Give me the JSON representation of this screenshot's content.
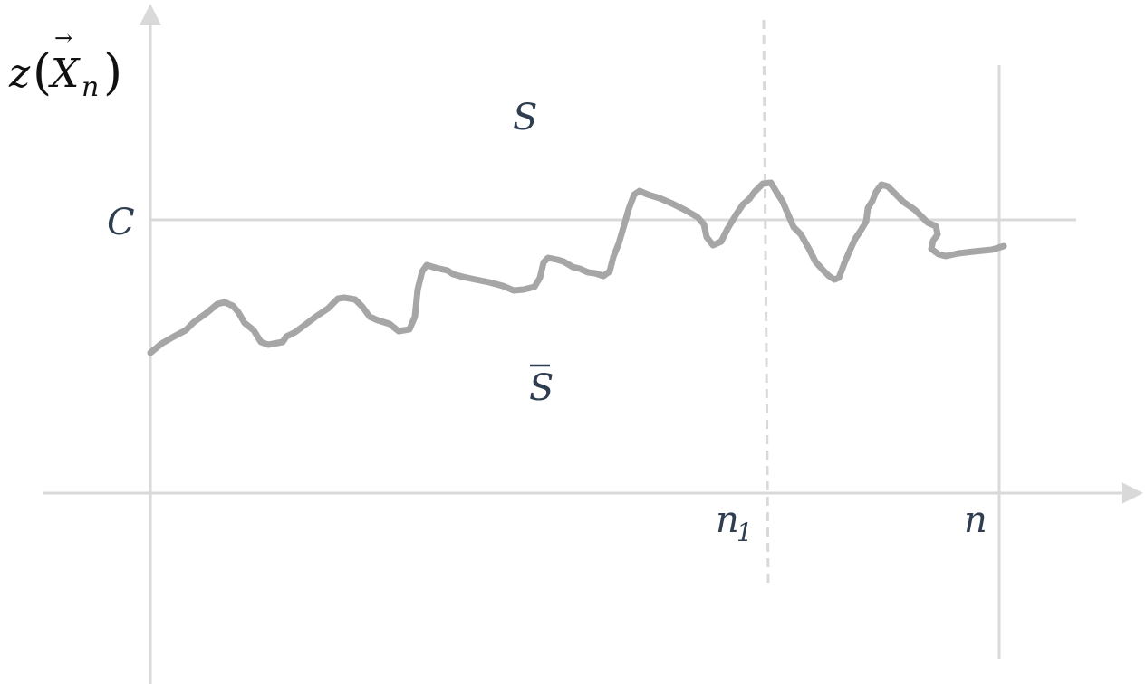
{
  "labels": {
    "y_axis_func": "z",
    "y_axis_vector": "X",
    "y_axis_vector_sub": "n",
    "y_axis_arrow": "→",
    "region_upper": "S",
    "region_lower": "S",
    "threshold": "C",
    "x_mark_n1": "n",
    "x_mark_n1_sub": "1",
    "x_mark_n": "n"
  },
  "colors": {
    "axes": "#d9d9d9",
    "curve": "#a6a6a6",
    "labels": "#2e3d50"
  }
}
